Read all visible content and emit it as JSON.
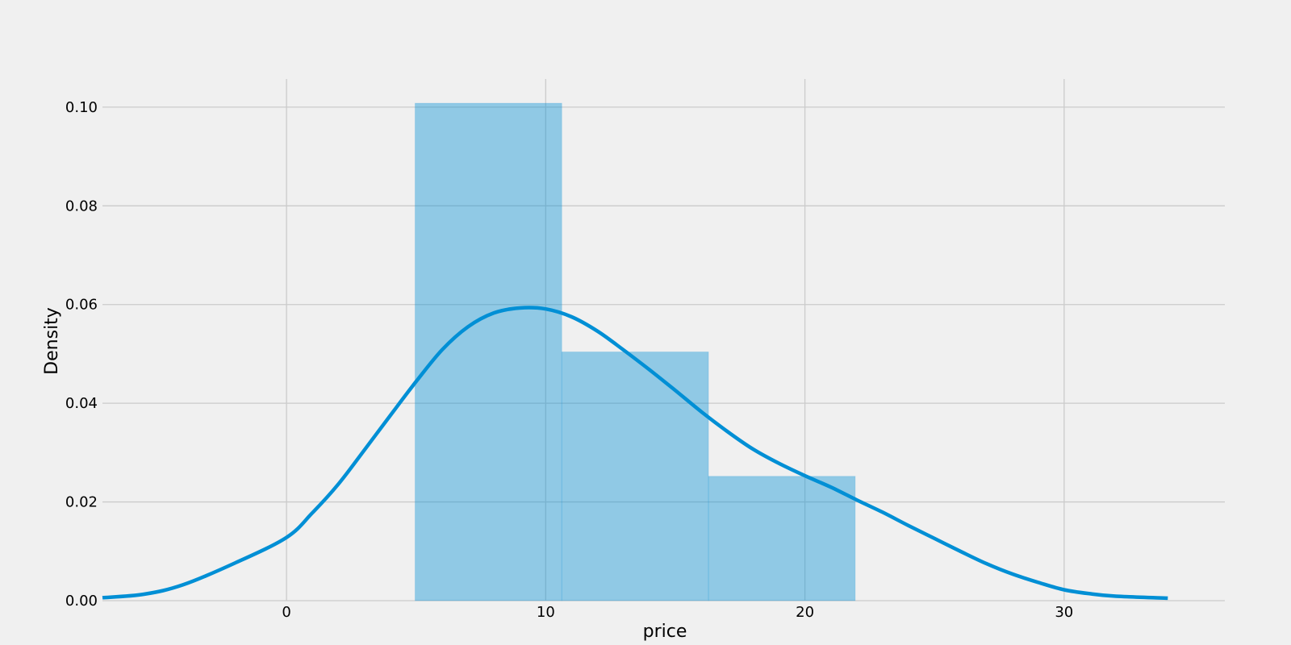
{
  "chart_data": {
    "type": "bar",
    "title": "",
    "xlabel": "price",
    "ylabel": "Density",
    "xlim": [
      -7.1,
      36.2
    ],
    "ylim": [
      0,
      0.1057
    ],
    "x_ticks": [
      0,
      10,
      20,
      30
    ],
    "y_ticks": [
      0.0,
      0.02,
      0.04,
      0.06,
      0.08,
      0.1
    ],
    "grid": true,
    "legend": "none",
    "histogram": {
      "bin_edges": [
        4.96,
        10.62,
        16.28,
        21.94
      ],
      "densities": [
        0.1008,
        0.0504,
        0.0252
      ],
      "color": "#008fd5",
      "opacity": 0.4
    },
    "kde": {
      "color": "#008fd5",
      "points": [
        [
          -7.1,
          0.0006
        ],
        [
          -5.5,
          0.0013
        ],
        [
          -4.0,
          0.0032
        ],
        [
          -2.0,
          0.0076
        ],
        [
          0.0,
          0.0128
        ],
        [
          1.0,
          0.0178
        ],
        [
          2.0,
          0.0236
        ],
        [
          3.0,
          0.0305
        ],
        [
          4.0,
          0.0375
        ],
        [
          5.0,
          0.0444
        ],
        [
          6.0,
          0.0508
        ],
        [
          7.0,
          0.0555
        ],
        [
          8.0,
          0.0583
        ],
        [
          9.0,
          0.0593
        ],
        [
          10.0,
          0.0591
        ],
        [
          11.0,
          0.0575
        ],
        [
          12.0,
          0.0546
        ],
        [
          13.0,
          0.0508
        ],
        [
          14.0,
          0.0468
        ],
        [
          15.0,
          0.0426
        ],
        [
          16.0,
          0.0383
        ],
        [
          17.0,
          0.0343
        ],
        [
          18.0,
          0.0307
        ],
        [
          19.0,
          0.0278
        ],
        [
          20.0,
          0.0253
        ],
        [
          21.0,
          0.023
        ],
        [
          22.0,
          0.0204
        ],
        [
          23.0,
          0.0179
        ],
        [
          24.0,
          0.0152
        ],
        [
          25.0,
          0.0126
        ],
        [
          26.0,
          0.01
        ],
        [
          27.0,
          0.0075
        ],
        [
          28.0,
          0.0054
        ],
        [
          29.0,
          0.0037
        ],
        [
          30.0,
          0.0022
        ],
        [
          31.0,
          0.0014
        ],
        [
          32.0,
          0.0009
        ],
        [
          34.0,
          0.0005
        ]
      ]
    }
  }
}
